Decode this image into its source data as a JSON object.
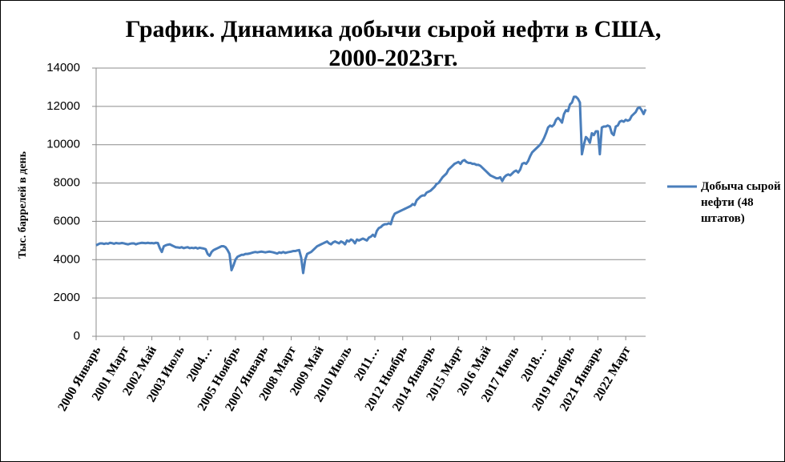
{
  "chart_data": {
    "type": "line",
    "title": "График. Динамика добычи сырой нефти в США, 2000-2023гг.",
    "y_label": "Тыс. баррелей в день",
    "categories": [
      "2000 Январь",
      null,
      null,
      null,
      null,
      null,
      null,
      null,
      null,
      null,
      null,
      null,
      null,
      null,
      "2001 Март",
      null,
      null,
      null,
      null,
      null,
      null,
      null,
      null,
      null,
      null,
      null,
      null,
      null,
      "2002 Май",
      null,
      null,
      null,
      null,
      null,
      null,
      null,
      null,
      null,
      null,
      null,
      null,
      null,
      "2003 Июль",
      null,
      null,
      null,
      null,
      null,
      null,
      null,
      null,
      null,
      null,
      null,
      null,
      null,
      "2004…",
      null,
      null,
      null,
      null,
      null,
      null,
      null,
      null,
      null,
      null,
      null,
      null,
      null,
      "2005 Ноябрь",
      null,
      null,
      null,
      null,
      null,
      null,
      null,
      null,
      null,
      null,
      null,
      null,
      null,
      "2007 Январь",
      null,
      null,
      null,
      null,
      null,
      null,
      null,
      null,
      null,
      null,
      null,
      null,
      null,
      "2008 Март",
      null,
      null,
      null,
      null,
      null,
      null,
      null,
      null,
      null,
      null,
      null,
      null,
      null,
      "2009 Май",
      null,
      null,
      null,
      null,
      null,
      null,
      null,
      null,
      null,
      null,
      null,
      null,
      null,
      "2010 Июль",
      null,
      null,
      null,
      null,
      null,
      null,
      null,
      null,
      null,
      null,
      null,
      null,
      null,
      "2011…",
      null,
      null,
      null,
      null,
      null,
      null,
      null,
      null,
      null,
      null,
      null,
      null,
      null,
      "2012 Ноябрь",
      null,
      null,
      null,
      null,
      null,
      null,
      null,
      null,
      null,
      null,
      null,
      null,
      null,
      "2014 Январь",
      null,
      null,
      null,
      null,
      null,
      null,
      null,
      null,
      null,
      null,
      null,
      null,
      null,
      "2015 Март",
      null,
      null,
      null,
      null,
      null,
      null,
      null,
      null,
      null,
      null,
      null,
      null,
      null,
      "2016 Май",
      null,
      null,
      null,
      null,
      null,
      null,
      null,
      null,
      null,
      null,
      null,
      null,
      null,
      "2017 Июль",
      null,
      null,
      null,
      null,
      null,
      null,
      null,
      null,
      null,
      null,
      null,
      null,
      null,
      "2018…",
      null,
      null,
      null,
      null,
      null,
      null,
      null,
      null,
      null,
      null,
      null,
      null,
      null,
      "2019 Ноябрь",
      null,
      null,
      null,
      null,
      null,
      null,
      null,
      null,
      null,
      null,
      null,
      null,
      null,
      "2021 Январь",
      null,
      null,
      null,
      null,
      null,
      null,
      null,
      null,
      null,
      null,
      null,
      null,
      null,
      "2022 Март",
      null,
      null,
      null,
      null,
      null,
      null,
      null,
      null,
      null,
      null
    ],
    "series": [
      {
        "name": "Добыча сырой нефти (48 штатов)",
        "color": "#4a7ebb",
        "values": [
          4750,
          4800,
          4850,
          4850,
          4820,
          4850,
          4830,
          4880,
          4860,
          4830,
          4870,
          4850,
          4850,
          4870,
          4850,
          4820,
          4800,
          4830,
          4850,
          4850,
          4800,
          4840,
          4860,
          4880,
          4870,
          4860,
          4880,
          4860,
          4870,
          4850,
          4880,
          4870,
          4600,
          4400,
          4700,
          4750,
          4780,
          4800,
          4750,
          4700,
          4650,
          4640,
          4620,
          4650,
          4600,
          4630,
          4650,
          4600,
          4620,
          4600,
          4630,
          4580,
          4620,
          4600,
          4580,
          4550,
          4300,
          4200,
          4400,
          4500,
          4550,
          4600,
          4650,
          4700,
          4700,
          4650,
          4500,
          4300,
          3450,
          3700,
          4000,
          4150,
          4200,
          4250,
          4250,
          4300,
          4300,
          4320,
          4350,
          4380,
          4400,
          4380,
          4400,
          4420,
          4400,
          4380,
          4400,
          4420,
          4400,
          4380,
          4350,
          4320,
          4380,
          4350,
          4400,
          4350,
          4380,
          4400,
          4420,
          4450,
          4450,
          4480,
          4500,
          4100,
          3300,
          4000,
          4300,
          4350,
          4400,
          4500,
          4600,
          4700,
          4750,
          4800,
          4850,
          4900,
          4950,
          4850,
          4800,
          4900,
          4950,
          4900,
          4850,
          4950,
          4900,
          4800,
          5000,
          4950,
          5050,
          5000,
          4850,
          5050,
          5000,
          5050,
          5100,
          5050,
          5000,
          5150,
          5200,
          5300,
          5200,
          5500,
          5650,
          5700,
          5800,
          5850,
          5850,
          5900,
          5850,
          6200,
          6400,
          6450,
          6500,
          6550,
          6600,
          6650,
          6700,
          6750,
          6800,
          6900,
          6850,
          7100,
          7200,
          7300,
          7350,
          7350,
          7500,
          7550,
          7600,
          7700,
          7800,
          7950,
          8000,
          8150,
          8300,
          8400,
          8500,
          8700,
          8800,
          8900,
          9000,
          9050,
          9100,
          9000,
          9150,
          9200,
          9100,
          9050,
          9050,
          9000,
          9000,
          8950,
          8950,
          8900,
          8800,
          8700,
          8600,
          8500,
          8400,
          8350,
          8300,
          8250,
          8250,
          8300,
          8100,
          8300,
          8400,
          8450,
          8400,
          8500,
          8600,
          8650,
          8550,
          8700,
          9000,
          9050,
          9000,
          9150,
          9400,
          9600,
          9700,
          9800,
          9900,
          10000,
          10150,
          10350,
          10600,
          10900,
          11000,
          10950,
          11050,
          11300,
          11400,
          11300,
          11150,
          11600,
          11800,
          11750,
          12100,
          12200,
          12500,
          12500,
          12400,
          12200,
          9500,
          10000,
          10400,
          10300,
          10100,
          10600,
          10500,
          10700,
          10700,
          9500,
          10900,
          10950,
          10950,
          11000,
          10950,
          10600,
          10500,
          10950,
          11000,
          11200,
          11250,
          11200,
          11300,
          11250,
          11300,
          11500,
          11600,
          11700,
          11900,
          11950,
          11800,
          11600,
          11850
        ]
      }
    ],
    "ylim": [
      0,
      14000
    ],
    "yticks": [
      0,
      2000,
      4000,
      6000,
      8000,
      10000,
      12000,
      14000
    ],
    "grid": true
  }
}
